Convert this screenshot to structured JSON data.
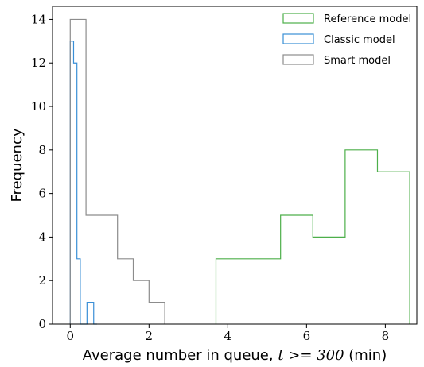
{
  "chart_data": {
    "type": "histogram",
    "xlabel_prefix": "Average number in queue, ",
    "xlabel_math": "t >= 300",
    "xlabel_suffix": " (min)",
    "ylabel": "Frequency",
    "xlim": [
      -0.45,
      8.8
    ],
    "ylim": [
      0,
      14.6
    ],
    "xticks": [
      0,
      2,
      4,
      6,
      8
    ],
    "yticks": [
      0,
      2,
      4,
      6,
      8,
      10,
      12,
      14
    ],
    "grid": false,
    "legend_position": "top-right",
    "series": [
      {
        "name": "Reference model",
        "color": "#4daf4a",
        "bin_edges": [
          3.7,
          4.52,
          5.34,
          6.16,
          6.98,
          7.8,
          8.62
        ],
        "counts": [
          3,
          3,
          5,
          4,
          8,
          7
        ]
      },
      {
        "name": "Classic model",
        "color": "#3a8fd6",
        "bin_edges": [
          0.0,
          0.085,
          0.17,
          0.255,
          0.34,
          0.425,
          0.51,
          0.595,
          0.68
        ],
        "counts": [
          13,
          12,
          3,
          0,
          0,
          1,
          1,
          0
        ]
      },
      {
        "name": "Smart model",
        "color": "#8c8c8c",
        "bin_edges": [
          0.0,
          0.4,
          1.2,
          1.6,
          2.0,
          2.4
        ],
        "counts": [
          14,
          5,
          3,
          2,
          1
        ]
      }
    ]
  }
}
